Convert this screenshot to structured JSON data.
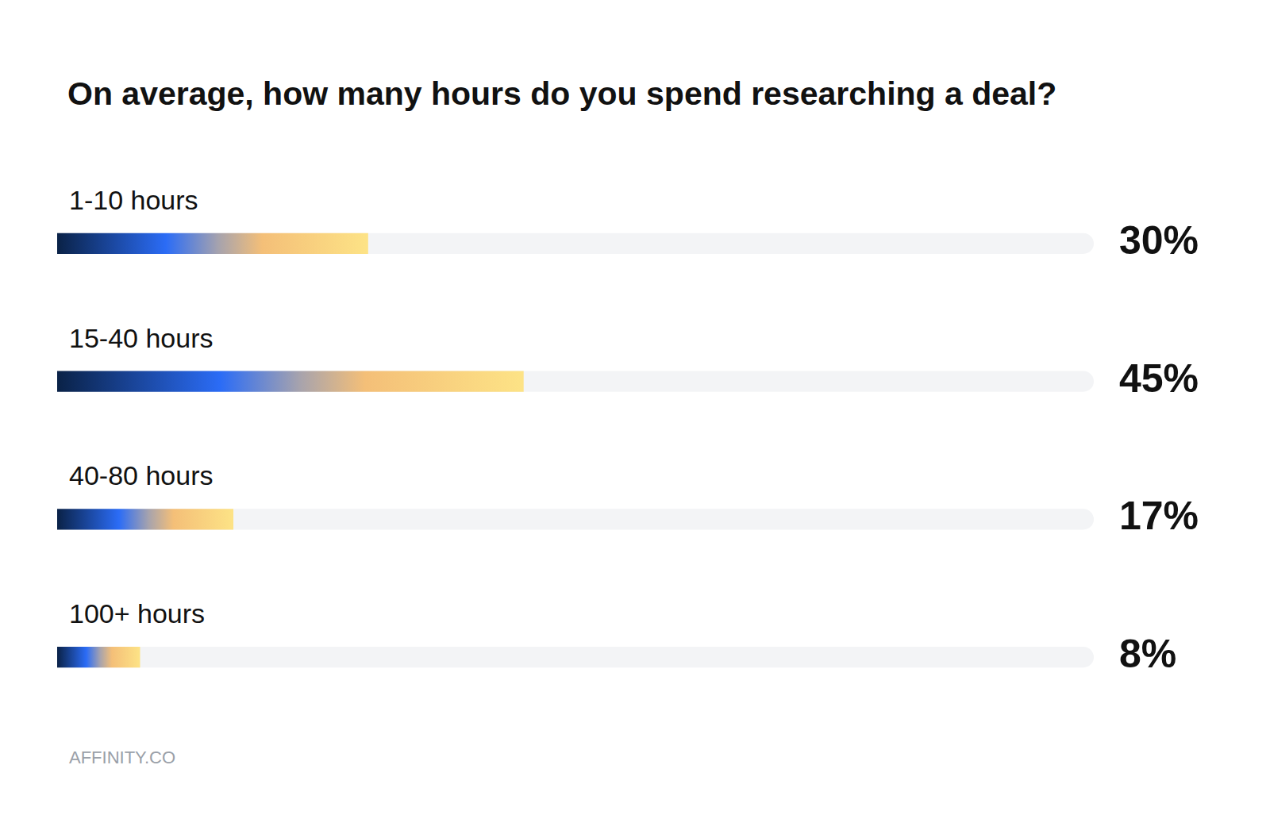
{
  "chart_data": {
    "type": "bar",
    "orientation": "horizontal",
    "title": "On average, how many hours do you spend researching a deal?",
    "categories": [
      "1-10 hours",
      "15-40 hours",
      "40-80 hours",
      "100+ hours"
    ],
    "values": [
      30,
      45,
      17,
      8
    ],
    "value_labels": [
      "30%",
      "45%",
      "17%",
      "8%"
    ],
    "data_labels": true,
    "color": "#2b6cf6",
    "xlim": [
      0,
      100
    ],
    "xticks": [],
    "tick_labels": false,
    "grid": false,
    "source": "AFFINITY.CO"
  }
}
